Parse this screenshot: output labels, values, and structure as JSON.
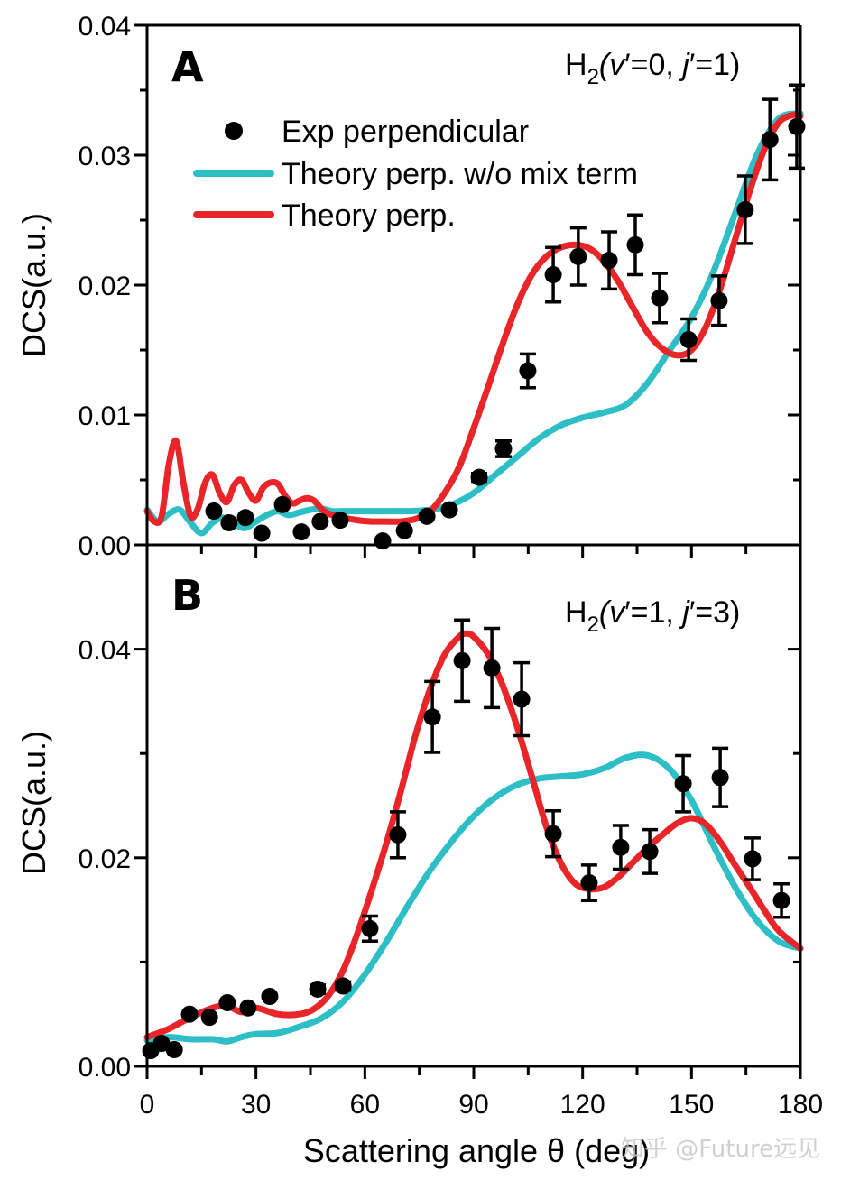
{
  "colors": {
    "theory_no_mix": "#2ebfc6",
    "theory": "#e8262a",
    "experiment": "#000000"
  },
  "watermark": "知乎 @Future远见",
  "chart_data": [
    {
      "panel": "A",
      "type": "scatter+line",
      "state_label": {
        "prefix": "H",
        "sub": "2",
        "text": "(v′=0, j′=1)"
      },
      "xlabel": "",
      "ylabel": "DCS(a.u.)",
      "xlim": [
        0,
        180
      ],
      "ylim": [
        0,
        0.04
      ],
      "yticks": [
        "0.00",
        "0.01",
        "0.02",
        "0.03",
        "0.04"
      ],
      "ytick_values": [
        0,
        0.01,
        0.02,
        0.03,
        0.04
      ],
      "legend": {
        "placement": "top-left",
        "entries": [
          {
            "label": "Exp perpendicular",
            "marker": "circle"
          },
          {
            "label": "Theory perp. w/o mix term",
            "series": "theory_no_mix"
          },
          {
            "label": "Theory perp.",
            "series": "theory"
          }
        ]
      },
      "experiment": {
        "name": "Exp perpendicular",
        "x": [
          18.4,
          22.6,
          27.1,
          31.6,
          37.3,
          42.5,
          47.7,
          53.2,
          64.9,
          70.9,
          77.1,
          83.3,
          91.5,
          98.2,
          104.9,
          111.9,
          118.8,
          127.3,
          134.5,
          141.2,
          149.2,
          157.6,
          164.8,
          171.6,
          179.0
        ],
        "y": [
          0.0026,
          0.0017,
          0.0021,
          0.0009,
          0.0031,
          0.001,
          0.0018,
          0.0019,
          0.0003,
          0.0011,
          0.0022,
          0.0027,
          0.0052,
          0.0074,
          0.0134,
          0.0208,
          0.0222,
          0.0219,
          0.0231,
          0.019,
          0.0158,
          0.0188,
          0.0258,
          0.0312,
          0.0322
        ],
        "yerr": [
          0,
          0,
          0,
          0,
          0,
          0,
          0,
          0,
          0,
          0,
          0,
          0,
          0.0003,
          0.0006,
          0.0013,
          0.0021,
          0.0022,
          0.0022,
          0.0023,
          0.0019,
          0.0016,
          0.0019,
          0.0026,
          0.0031,
          0.0032
        ]
      },
      "series": [
        {
          "name": "Theory perp. w/o mix term",
          "key": "theory_no_mix",
          "x": [
            0,
            3,
            6,
            9,
            12,
            15,
            18,
            21,
            24,
            27,
            30,
            33,
            36,
            39,
            42,
            45,
            48,
            51,
            54,
            57,
            60,
            66,
            72,
            78,
            84,
            90,
            96,
            102,
            108,
            114,
            120,
            126,
            132,
            138,
            144,
            150,
            156,
            162,
            168,
            174,
            180
          ],
          "y": [
            0.0027,
            0.0018,
            0.0024,
            0.0027,
            0.0017,
            0.0009,
            0.0017,
            0.0021,
            0.0016,
            0.0013,
            0.0018,
            0.0023,
            0.0026,
            0.0023,
            0.0025,
            0.0027,
            0.0028,
            0.0026,
            0.0026,
            0.0026,
            0.0026,
            0.0026,
            0.0026,
            0.0027,
            0.0031,
            0.004,
            0.0054,
            0.0068,
            0.0082,
            0.0092,
            0.0098,
            0.0102,
            0.0108,
            0.0125,
            0.015,
            0.0175,
            0.021,
            0.0255,
            0.03,
            0.0328,
            0.0332
          ]
        },
        {
          "name": "Theory perp.",
          "key": "theory",
          "x": [
            0,
            2,
            4,
            6,
            8,
            10,
            12,
            14,
            16,
            18,
            20,
            22,
            24,
            26,
            28,
            30,
            32,
            34,
            36,
            38,
            40,
            42,
            44,
            46,
            48,
            50,
            54,
            58,
            62,
            66,
            70,
            74,
            78,
            82,
            86,
            90,
            94,
            98,
            102,
            106,
            110,
            114,
            118,
            122,
            126,
            130,
            134,
            138,
            142,
            146,
            150,
            154,
            158,
            162,
            166,
            170,
            174,
            178,
            180
          ],
          "y": [
            0.0026,
            0.0018,
            0.0022,
            0.0062,
            0.008,
            0.0048,
            0.0022,
            0.0028,
            0.0048,
            0.0054,
            0.004,
            0.0033,
            0.0046,
            0.005,
            0.004,
            0.0034,
            0.0044,
            0.0048,
            0.0047,
            0.0038,
            0.0032,
            0.0034,
            0.0036,
            0.0034,
            0.0028,
            0.0024,
            0.0021,
            0.0019,
            0.0018,
            0.0018,
            0.0018,
            0.002,
            0.0026,
            0.004,
            0.006,
            0.009,
            0.0122,
            0.0155,
            0.0185,
            0.0208,
            0.0222,
            0.0229,
            0.0231,
            0.0228,
            0.0218,
            0.0202,
            0.0182,
            0.0163,
            0.0151,
            0.0146,
            0.015,
            0.0168,
            0.0198,
            0.0235,
            0.0272,
            0.0304,
            0.0325,
            0.0331,
            0.033
          ]
        }
      ]
    },
    {
      "panel": "B",
      "type": "scatter+line",
      "state_label": {
        "prefix": "H",
        "sub": "2",
        "text": "(v′=1, j′=3)"
      },
      "xlabel": "Scattering angle θ (deg)",
      "ylabel": "DCS(a.u.)",
      "xlim": [
        0,
        180
      ],
      "ylim": [
        0,
        0.05
      ],
      "xticks": [
        "0",
        "30",
        "60",
        "90",
        "120",
        "150",
        "180"
      ],
      "xtick_values": [
        0,
        30,
        60,
        90,
        120,
        150,
        180
      ],
      "yticks": [
        "0.00",
        "0.02",
        "0.04"
      ],
      "ytick_values": [
        0,
        0.02,
        0.04
      ],
      "experiment": {
        "name": "Exp perpendicular",
        "x": [
          1.0,
          4.0,
          7.5,
          11.7,
          17.2,
          22.1,
          27.8,
          33.8,
          47.0,
          54.0,
          61.4,
          69.1,
          78.6,
          86.8,
          95.0,
          103.2,
          111.9,
          121.8,
          130.5,
          138.5,
          147.7,
          157.9,
          166.8,
          174.8
        ],
        "y": [
          0.0015,
          0.0022,
          0.0016,
          0.005,
          0.0047,
          0.0061,
          0.0056,
          0.0067,
          0.0074,
          0.0077,
          0.0132,
          0.0222,
          0.0335,
          0.0389,
          0.0382,
          0.0352,
          0.0223,
          0.0176,
          0.021,
          0.0206,
          0.0271,
          0.0277,
          0.0199,
          0.0159
        ],
        "yerr": [
          0,
          0,
          0,
          0,
          0,
          0,
          0,
          0,
          0.0004,
          0.0004,
          0.0012,
          0.0022,
          0.0034,
          0.0039,
          0.0038,
          0.0035,
          0.0022,
          0.0017,
          0.0021,
          0.0021,
          0.0027,
          0.0028,
          0.002,
          0.0016
        ]
      },
      "series": [
        {
          "name": "Theory perp. w/o mix term",
          "key": "theory_no_mix",
          "x": [
            0,
            6,
            12,
            18,
            22,
            26,
            30,
            36,
            42,
            48,
            54,
            60,
            66,
            72,
            78,
            84,
            90,
            96,
            102,
            108,
            114,
            120,
            126,
            132,
            138,
            144,
            150,
            156,
            162,
            168,
            174,
            180
          ],
          "y": [
            0.0025,
            0.0028,
            0.0026,
            0.0026,
            0.0024,
            0.0028,
            0.0031,
            0.0032,
            0.0038,
            0.0046,
            0.0062,
            0.0088,
            0.012,
            0.0155,
            0.0188,
            0.0216,
            0.024,
            0.0258,
            0.027,
            0.0276,
            0.0278,
            0.028,
            0.0286,
            0.0296,
            0.0298,
            0.0285,
            0.0255,
            0.0212,
            0.0172,
            0.014,
            0.012,
            0.0113
          ]
        },
        {
          "name": "Theory perp.",
          "key": "theory",
          "x": [
            0,
            6,
            12,
            18,
            22,
            26,
            30,
            36,
            42,
            46,
            50,
            54,
            58,
            62,
            66,
            70,
            74,
            78,
            82,
            86,
            88,
            90,
            94,
            98,
            102,
            106,
            110,
            114,
            118,
            122,
            126,
            130,
            134,
            138,
            142,
            146,
            150,
            154,
            158,
            162,
            166,
            170,
            174,
            180
          ],
          "y": [
            0.0028,
            0.0036,
            0.0047,
            0.0056,
            0.0058,
            0.0052,
            0.0056,
            0.005,
            0.005,
            0.0055,
            0.0068,
            0.0092,
            0.0128,
            0.017,
            0.0215,
            0.0265,
            0.0318,
            0.0362,
            0.0395,
            0.0412,
            0.0415,
            0.0412,
            0.0395,
            0.0365,
            0.0325,
            0.0278,
            0.023,
            0.0195,
            0.0175,
            0.017,
            0.0172,
            0.0182,
            0.0196,
            0.021,
            0.0222,
            0.0233,
            0.0238,
            0.0232,
            0.0215,
            0.0193,
            0.0172,
            0.015,
            0.013,
            0.0113
          ]
        }
      ]
    }
  ]
}
